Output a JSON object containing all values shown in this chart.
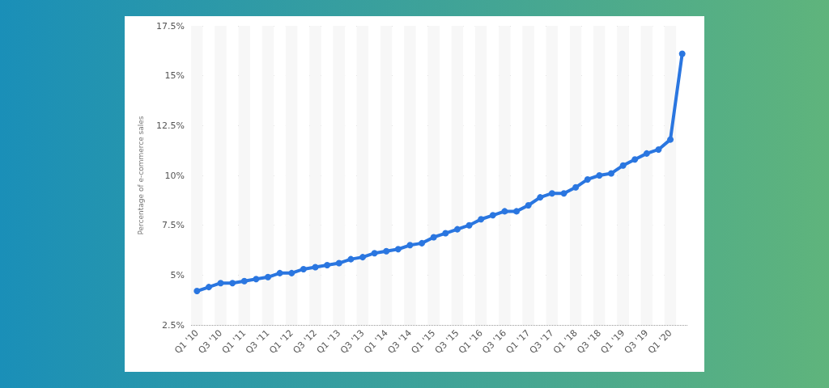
{
  "chart_data": {
    "type": "line",
    "ylabel": "Percentage of e-commerce sales",
    "categories": [
      "Q1 '10",
      null,
      "Q3 '10",
      null,
      "Q1 '11",
      null,
      "Q3 '11",
      null,
      "Q1 '12",
      null,
      "Q3 '12",
      null,
      "Q1 '13",
      null,
      "Q3 '13",
      null,
      "Q1 '14",
      null,
      "Q3 '14",
      null,
      "Q1 '15",
      null,
      "Q3 '15",
      null,
      "Q1 '16",
      null,
      "Q3 '16",
      null,
      "Q1 '17",
      null,
      "Q3 '17",
      null,
      "Q1 '18",
      null,
      "Q3 '18",
      null,
      "Q1 '19",
      null,
      "Q3 '19",
      null,
      "Q1 '20",
      null
    ],
    "series": [
      {
        "color": "#2a76e0",
        "values": [
          4.2,
          4.4,
          4.6,
          4.6,
          4.7,
          4.8,
          4.9,
          5.1,
          5.1,
          5.3,
          5.4,
          5.5,
          5.6,
          5.8,
          5.9,
          6.1,
          6.2,
          6.3,
          6.5,
          6.6,
          6.9,
          7.1,
          7.3,
          7.5,
          7.8,
          8.0,
          8.2,
          8.2,
          8.5,
          8.9,
          9.1,
          9.1,
          9.4,
          9.8,
          10.0,
          10.1,
          10.5,
          10.8,
          11.1,
          11.3,
          11.8,
          16.1
        ]
      }
    ],
    "ylim": [
      2.5,
      17.5
    ],
    "yticks": [
      {
        "value": 2.5,
        "label": "2.5%"
      },
      {
        "value": 5,
        "label": "5%"
      },
      {
        "value": 7.5,
        "label": "7.5%"
      },
      {
        "value": 10,
        "label": "10%"
      },
      {
        "value": 12.5,
        "label": "12.5%"
      },
      {
        "value": 15,
        "label": "15%"
      },
      {
        "value": 17.5,
        "label": "17.5%"
      }
    ],
    "grid": "y",
    "marker": "circle",
    "line_style": "solid"
  }
}
